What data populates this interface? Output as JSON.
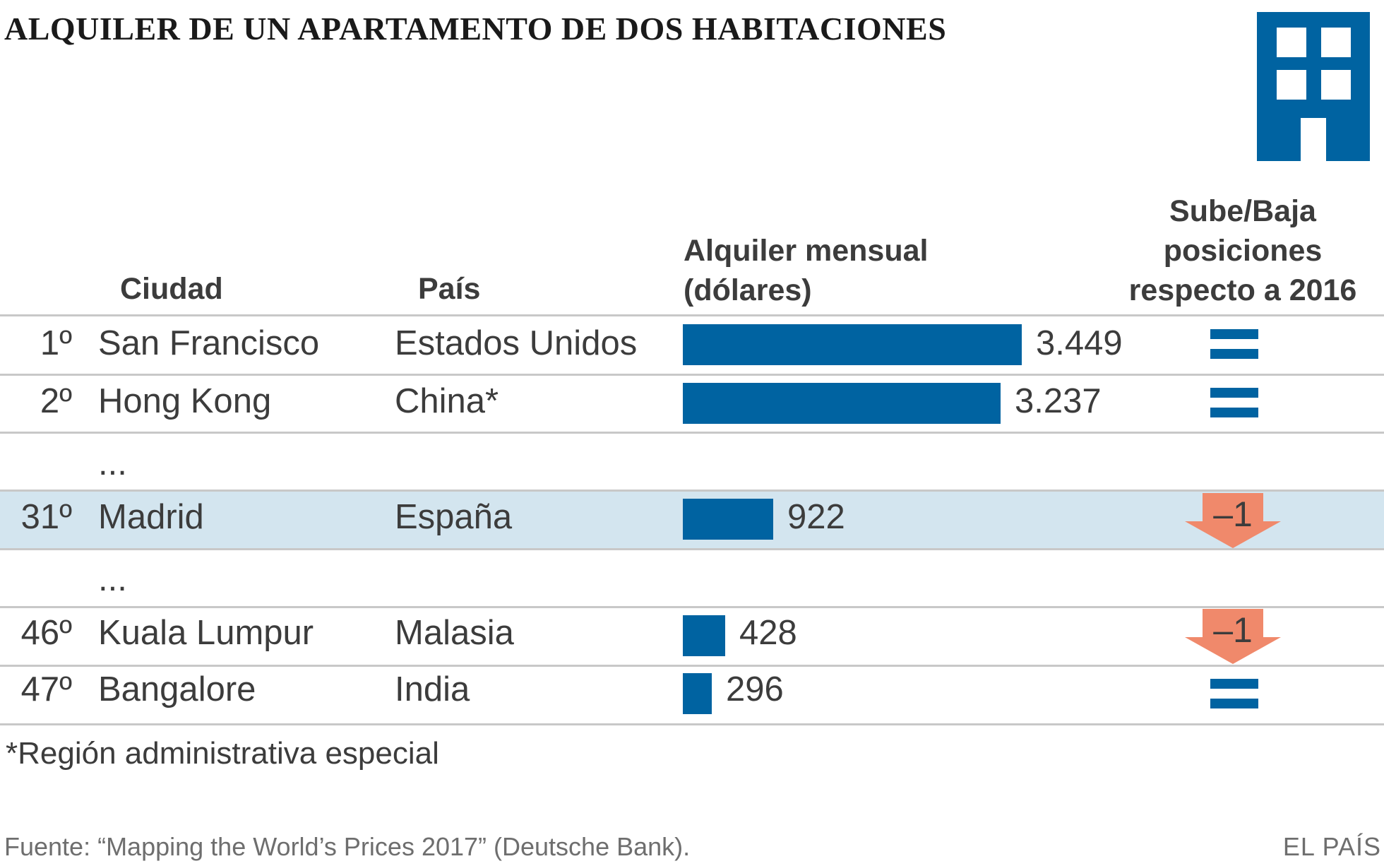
{
  "title": "ALQUILER DE UN APARTAMENTO DE DOS HABITACIONES",
  "headers": {
    "ciudad": "Ciudad",
    "pais": "País",
    "alquiler_line1": "Alquiler mensual",
    "alquiler_line2": "(dólares)",
    "sube_line1": "Sube/Baja",
    "sube_line2": "posiciones",
    "sube_line3": "respecto a 2016"
  },
  "ellipsis": "...",
  "footnote": "*Región administrativa especial",
  "source": "Fuente: “Mapping the World’s Prices 2017” (Deutsche Bank).",
  "brand": "EL PAÍS",
  "colors": {
    "bar": "#0063a1",
    "highlight": "#d3e5ef",
    "down_arrow": "#f0896b"
  },
  "chart_data": {
    "type": "bar",
    "title": "ALQUILER DE UN APARTAMENTO DE DOS HABITACIONES",
    "xlabel": "Alquiler mensual (dólares)",
    "ylabel": "",
    "unit": "dólares",
    "xlim": [
      0,
      3449
    ],
    "rows": [
      {
        "rank": "1º",
        "city": "San Francisco",
        "country": "Estados Unidos",
        "value": 3449,
        "value_label": "3.449",
        "change": "=",
        "change_label": ""
      },
      {
        "rank": "2º",
        "city": "Hong Kong",
        "country": "China*",
        "value": 3237,
        "value_label": "3.237",
        "change": "=",
        "change_label": ""
      },
      {
        "rank": "31º",
        "city": "Madrid",
        "country": "España",
        "value": 922,
        "value_label": "922",
        "change": "down",
        "change_label": "–1",
        "highlight": true
      },
      {
        "rank": "46º",
        "city": "Kuala Lumpur",
        "country": "Malasia",
        "value": 428,
        "value_label": "428",
        "change": "down",
        "change_label": "–1"
      },
      {
        "rank": "47º",
        "city": "Bangalore",
        "country": "India",
        "value": 296,
        "value_label": "296",
        "change": "=",
        "change_label": ""
      }
    ]
  }
}
